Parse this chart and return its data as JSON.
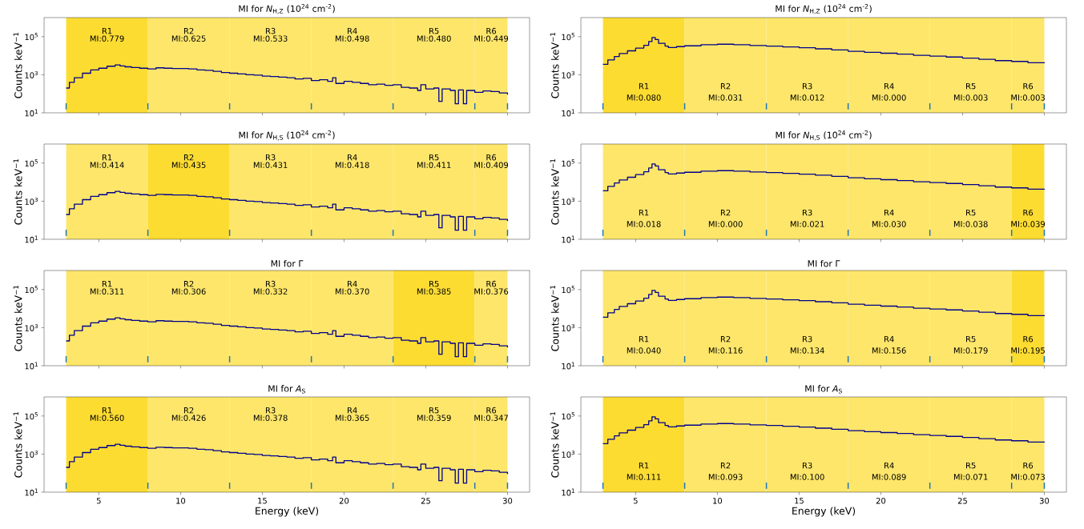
{
  "chart_data": [
    {
      "type": "step",
      "title": "MI for *N*$_{H,Z}$ (10$^{24}$ cm$^{-2}$)",
      "ylabel": "Counts keV$^{−1}$",
      "log": "y",
      "tick_labels": "y",
      "xlim": [
        1.65,
        31.35
      ],
      "ylim": [
        10,
        1000000
      ],
      "xticks": [
        5,
        10,
        15,
        20,
        25,
        30
      ],
      "yticks": [
        {
          "value": 10,
          "label": "10$^{1}$"
        },
        {
          "value": 1000,
          "label": "10$^{3}$"
        },
        {
          "value": 100000,
          "label": "10$^{5}$"
        }
      ],
      "series": [
        {
          "color": "#00008b",
          "x": [
            3.0,
            3.2,
            3.5,
            4,
            4.5,
            5,
            5.5,
            6,
            6.3,
            6.6,
            7,
            7.5,
            8,
            8.5,
            9,
            9.5,
            10,
            10.5,
            11,
            11.5,
            12,
            12.5,
            13,
            13.5,
            14,
            14.5,
            15,
            15.5,
            16,
            16.5,
            17,
            17.5,
            18,
            18.5,
            19,
            19.3,
            19.5,
            20,
            20.5,
            21,
            21.5,
            22,
            22.5,
            23,
            23.5,
            24,
            24.5,
            24.7,
            25,
            25.5,
            25.8,
            26,
            26.5,
            26.8,
            27,
            27.3,
            27.5,
            28,
            28.5,
            29,
            29.5,
            30
          ],
          "values": [
            200,
            400,
            700,
            1200,
            1800,
            2200,
            2800,
            3300,
            2900,
            2600,
            2400,
            2200,
            2000,
            2300,
            2200,
            2100,
            2100,
            2000,
            1800,
            1700,
            1500,
            1300,
            1200,
            1100,
            1000,
            950,
            850,
            800,
            750,
            700,
            600,
            650,
            500,
            550,
            450,
            700,
            350,
            450,
            400,
            350,
            300,
            320,
            280,
            300,
            220,
            200,
            150,
            300,
            180,
            200,
            40,
            180,
            150,
            30,
            160,
            30,
            150,
            120,
            140,
            130,
            110,
            90
          ]
        },
        {
          "type": "bar",
          "color": "#1f77b4",
          "x": [
            3,
            8,
            13,
            18,
            23,
            28,
            30
          ],
          "base": [
            15,
            15,
            15,
            15,
            15,
            15,
            15
          ],
          "values": [
            17,
            17,
            17,
            17,
            17,
            17,
            17
          ]
        }
      ],
      "bands": [
        {
          "axis": "x",
          "from": 3,
          "to": 8,
          "label": "R1",
          "color": "#fddc32"
        },
        {
          "axis": "x",
          "from": 8,
          "to": 13,
          "label": "R2",
          "color": "#fde66a"
        },
        {
          "axis": "x",
          "from": 13,
          "to": 18,
          "label": "R3",
          "color": "#fde66a"
        },
        {
          "axis": "x",
          "from": 18,
          "to": 23,
          "label": "R4",
          "color": "#fde66a"
        },
        {
          "axis": "x",
          "from": 23,
          "to": 28,
          "label": "R5",
          "color": "#fde66a"
        },
        {
          "axis": "x",
          "from": 28,
          "to": 30,
          "label": "R6",
          "color": "#fde66a"
        }
      ],
      "annotations": [
        "MI:0.779",
        "MI:0.625",
        "MI:0.533",
        "MI:0.498",
        "MI:0.480",
        "MI:0.449"
      ]
    },
    {
      "type": "step",
      "title": "MI for *N*$_{H,Z}$ (10$^{24}$ cm$^{-2}$)",
      "ylabel": "Counts keV$^{−1}$",
      "log": "y",
      "tick_labels": "y",
      "xlim": [
        1.65,
        31.35
      ],
      "ylim": [
        10,
        1000000
      ],
      "xticks": [
        5,
        10,
        15,
        20,
        25,
        30
      ],
      "yticks": [
        {
          "value": 10,
          "label": "10$^{1}$"
        },
        {
          "value": 1000,
          "label": "10$^{3}$"
        },
        {
          "value": 100000,
          "label": "10$^{5}$"
        }
      ],
      "series": [
        {
          "color": "#00008b",
          "x": [
            3,
            3.3,
            3.7,
            4,
            4.5,
            5,
            5.5,
            5.8,
            6.0,
            6.2,
            6.4,
            6.6,
            6.8,
            7,
            7.5,
            8,
            9,
            10,
            11,
            12,
            13,
            14,
            15,
            16,
            17,
            18,
            19,
            20,
            21,
            22,
            23,
            24,
            25,
            26,
            27,
            28,
            29,
            30
          ],
          "values": [
            3500,
            6000,
            9000,
            13000,
            18000,
            25000,
            35000,
            55000,
            90000,
            70000,
            45000,
            45000,
            32000,
            27000,
            30000,
            33000,
            38000,
            40000,
            38000,
            34000,
            32000,
            29000,
            26000,
            23000,
            20000,
            17000,
            15000,
            13500,
            12000,
            10500,
            9500,
            8500,
            7500,
            6500,
            5500,
            5000,
            4300,
            4000
          ]
        },
        {
          "type": "bar",
          "color": "#1f77b4",
          "x": [
            3,
            8,
            13,
            18,
            23,
            28,
            30
          ],
          "base": [
            15,
            15,
            15,
            15,
            15,
            15,
            15
          ],
          "values": [
            17,
            17,
            17,
            17,
            17,
            17,
            17
          ]
        }
      ],
      "bands": [
        {
          "axis": "x",
          "from": 3,
          "to": 8,
          "label": "R1",
          "color": "#fddc32"
        },
        {
          "axis": "x",
          "from": 8,
          "to": 13,
          "label": "R2",
          "color": "#fde66a"
        },
        {
          "axis": "x",
          "from": 13,
          "to": 18,
          "label": "R3",
          "color": "#fde66a"
        },
        {
          "axis": "x",
          "from": 18,
          "to": 23,
          "label": "R4",
          "color": "#fde66a"
        },
        {
          "axis": "x",
          "from": 23,
          "to": 28,
          "label": "R5",
          "color": "#fde66a"
        },
        {
          "axis": "x",
          "from": 28,
          "to": 30,
          "label": "R6",
          "color": "#fde66a"
        }
      ],
      "annotations": [
        "MI:0.080",
        "MI:0.031",
        "MI:0.012",
        "MI:0.000",
        "MI:0.003",
        "MI:0.003"
      ]
    },
    {
      "type": "step",
      "title": "MI for *N*$_{H,S}$ (10$^{24}$ cm$^{-2}$)",
      "ylabel": "Counts keV$^{−1}$",
      "log": "y",
      "tick_labels": "y",
      "xlim": [
        1.65,
        31.35
      ],
      "ylim": [
        10,
        1000000
      ],
      "xticks": [
        5,
        10,
        15,
        20,
        25,
        30
      ],
      "yticks": [
        {
          "value": 10,
          "label": "10$^{1}$"
        },
        {
          "value": 1000,
          "label": "10$^{3}$"
        },
        {
          "value": 100000,
          "label": "10$^{5}$"
        }
      ],
      "series": [
        {
          "color": "#00008b",
          "x": [
            3.0,
            3.2,
            3.5,
            4,
            4.5,
            5,
            5.5,
            6,
            6.3,
            6.6,
            7,
            7.5,
            8,
            8.5,
            9,
            9.5,
            10,
            10.5,
            11,
            11.5,
            12,
            12.5,
            13,
            13.5,
            14,
            14.5,
            15,
            15.5,
            16,
            16.5,
            17,
            17.5,
            18,
            18.5,
            19,
            19.3,
            19.5,
            20,
            20.5,
            21,
            21.5,
            22,
            22.5,
            23,
            23.5,
            24,
            24.5,
            24.7,
            25,
            25.5,
            25.8,
            26,
            26.5,
            26.8,
            27,
            27.3,
            27.5,
            28,
            28.5,
            29,
            29.5,
            30
          ],
          "values": [
            200,
            400,
            700,
            1200,
            1800,
            2200,
            2800,
            3300,
            2900,
            2600,
            2400,
            2200,
            2000,
            2300,
            2200,
            2100,
            2100,
            2000,
            1800,
            1700,
            1500,
            1300,
            1200,
            1100,
            1000,
            950,
            850,
            800,
            750,
            700,
            600,
            650,
            500,
            550,
            450,
            700,
            350,
            450,
            400,
            350,
            300,
            320,
            280,
            300,
            220,
            200,
            150,
            300,
            180,
            200,
            40,
            180,
            150,
            30,
            160,
            30,
            150,
            120,
            140,
            130,
            110,
            90
          ]
        },
        {
          "type": "bar",
          "color": "#1f77b4",
          "x": [
            3,
            8,
            13,
            18,
            23,
            28,
            30
          ],
          "base": [
            15,
            15,
            15,
            15,
            15,
            15,
            15
          ],
          "values": [
            17,
            17,
            17,
            17,
            17,
            17,
            17
          ]
        }
      ],
      "bands": [
        {
          "axis": "x",
          "from": 3,
          "to": 8,
          "label": "R1",
          "color": "#fde66a"
        },
        {
          "axis": "x",
          "from": 8,
          "to": 13,
          "label": "R2",
          "color": "#fddc32"
        },
        {
          "axis": "x",
          "from": 13,
          "to": 18,
          "label": "R3",
          "color": "#fde66a"
        },
        {
          "axis": "x",
          "from": 18,
          "to": 23,
          "label": "R4",
          "color": "#fde66a"
        },
        {
          "axis": "x",
          "from": 23,
          "to": 28,
          "label": "R5",
          "color": "#fde66a"
        },
        {
          "axis": "x",
          "from": 28,
          "to": 30,
          "label": "R6",
          "color": "#fde66a"
        }
      ],
      "annotations": [
        "MI:0.414",
        "MI:0.435",
        "MI:0.431",
        "MI:0.418",
        "MI:0.411",
        "MI:0.409"
      ]
    },
    {
      "type": "step",
      "title": "MI for *N*$_{H,S}$ (10$^{24}$ cm$^{-2}$)",
      "ylabel": "Counts keV$^{−1}$",
      "log": "y",
      "tick_labels": "y",
      "xlim": [
        1.65,
        31.35
      ],
      "ylim": [
        10,
        1000000
      ],
      "xticks": [
        5,
        10,
        15,
        20,
        25,
        30
      ],
      "yticks": [
        {
          "value": 10,
          "label": "10$^{1}$"
        },
        {
          "value": 1000,
          "label": "10$^{3}$"
        },
        {
          "value": 100000,
          "label": "10$^{5}$"
        }
      ],
      "series": [
        {
          "color": "#00008b",
          "x": [
            3,
            3.3,
            3.7,
            4,
            4.5,
            5,
            5.5,
            5.8,
            6.0,
            6.2,
            6.4,
            6.6,
            6.8,
            7,
            7.5,
            8,
            9,
            10,
            11,
            12,
            13,
            14,
            15,
            16,
            17,
            18,
            19,
            20,
            21,
            22,
            23,
            24,
            25,
            26,
            27,
            28,
            29,
            30
          ],
          "values": [
            3500,
            6000,
            9000,
            13000,
            18000,
            25000,
            35000,
            55000,
            90000,
            70000,
            45000,
            45000,
            32000,
            27000,
            30000,
            33000,
            38000,
            40000,
            38000,
            34000,
            32000,
            29000,
            26000,
            23000,
            20000,
            17000,
            15000,
            13500,
            12000,
            10500,
            9500,
            8500,
            7500,
            6500,
            5500,
            5000,
            4300,
            4000
          ]
        },
        {
          "type": "bar",
          "color": "#1f77b4",
          "x": [
            3,
            8,
            13,
            18,
            23,
            28,
            30
          ],
          "base": [
            15,
            15,
            15,
            15,
            15,
            15,
            15
          ],
          "values": [
            17,
            17,
            17,
            17,
            17,
            17,
            17
          ]
        }
      ],
      "bands": [
        {
          "axis": "x",
          "from": 3,
          "to": 8,
          "label": "R1",
          "color": "#fde66a"
        },
        {
          "axis": "x",
          "from": 8,
          "to": 13,
          "label": "R2",
          "color": "#fde66a"
        },
        {
          "axis": "x",
          "from": 13,
          "to": 18,
          "label": "R3",
          "color": "#fde66a"
        },
        {
          "axis": "x",
          "from": 18,
          "to": 23,
          "label": "R4",
          "color": "#fde66a"
        },
        {
          "axis": "x",
          "from": 23,
          "to": 28,
          "label": "R5",
          "color": "#fde66a"
        },
        {
          "axis": "x",
          "from": 28,
          "to": 30,
          "label": "R6",
          "color": "#fddc32"
        }
      ],
      "annotations": [
        "MI:0.018",
        "MI:0.000",
        "MI:0.021",
        "MI:0.030",
        "MI:0.038",
        "MI:0.039"
      ]
    },
    {
      "type": "step",
      "title": "MI for Γ",
      "ylabel": "Counts keV$^{−1}$",
      "log": "y",
      "tick_labels": "y",
      "xlim": [
        1.65,
        31.35
      ],
      "ylim": [
        10,
        1000000
      ],
      "xticks": [
        5,
        10,
        15,
        20,
        25,
        30
      ],
      "yticks": [
        {
          "value": 10,
          "label": "10$^{1}$"
        },
        {
          "value": 1000,
          "label": "10$^{3}$"
        },
        {
          "value": 100000,
          "label": "10$^{5}$"
        }
      ],
      "series": [
        {
          "color": "#00008b",
          "x": [
            3.0,
            3.2,
            3.5,
            4,
            4.5,
            5,
            5.5,
            6,
            6.3,
            6.6,
            7,
            7.5,
            8,
            8.5,
            9,
            9.5,
            10,
            10.5,
            11,
            11.5,
            12,
            12.5,
            13,
            13.5,
            14,
            14.5,
            15,
            15.5,
            16,
            16.5,
            17,
            17.5,
            18,
            18.5,
            19,
            19.3,
            19.5,
            20,
            20.5,
            21,
            21.5,
            22,
            22.5,
            23,
            23.5,
            24,
            24.5,
            24.7,
            25,
            25.5,
            25.8,
            26,
            26.5,
            26.8,
            27,
            27.3,
            27.5,
            28,
            28.5,
            29,
            29.5,
            30
          ],
          "values": [
            200,
            400,
            700,
            1200,
            1800,
            2200,
            2800,
            3300,
            2900,
            2600,
            2400,
            2200,
            2000,
            2300,
            2200,
            2100,
            2100,
            2000,
            1800,
            1700,
            1500,
            1300,
            1200,
            1100,
            1000,
            950,
            850,
            800,
            750,
            700,
            600,
            650,
            500,
            550,
            450,
            700,
            350,
            450,
            400,
            350,
            300,
            320,
            280,
            300,
            220,
            200,
            150,
            300,
            180,
            200,
            40,
            180,
            150,
            30,
            160,
            30,
            150,
            120,
            140,
            130,
            110,
            90
          ]
        },
        {
          "type": "bar",
          "color": "#1f77b4",
          "x": [
            3,
            8,
            13,
            18,
            23,
            28,
            30
          ],
          "base": [
            15,
            15,
            15,
            15,
            15,
            15,
            15
          ],
          "values": [
            17,
            17,
            17,
            17,
            17,
            17,
            17
          ]
        }
      ],
      "bands": [
        {
          "axis": "x",
          "from": 3,
          "to": 8,
          "label": "R1",
          "color": "#fde66a"
        },
        {
          "axis": "x",
          "from": 8,
          "to": 13,
          "label": "R2",
          "color": "#fde66a"
        },
        {
          "axis": "x",
          "from": 13,
          "to": 18,
          "label": "R3",
          "color": "#fde66a"
        },
        {
          "axis": "x",
          "from": 18,
          "to": 23,
          "label": "R4",
          "color": "#fde66a"
        },
        {
          "axis": "x",
          "from": 23,
          "to": 28,
          "label": "R5",
          "color": "#fddc32"
        },
        {
          "axis": "x",
          "from": 28,
          "to": 30,
          "label": "R6",
          "color": "#fde66a"
        }
      ],
      "annotations": [
        "MI:0.311",
        "MI:0.306",
        "MI:0.332",
        "MI:0.370",
        "MI:0.385",
        "MI:0.376"
      ]
    },
    {
      "type": "step",
      "title": "MI for Γ",
      "ylabel": "Counts keV$^{−1}$",
      "log": "y",
      "tick_labels": "y",
      "xlim": [
        1.65,
        31.35
      ],
      "ylim": [
        10,
        1000000
      ],
      "xticks": [
        5,
        10,
        15,
        20,
        25,
        30
      ],
      "yticks": [
        {
          "value": 10,
          "label": "10$^{1}$"
        },
        {
          "value": 1000,
          "label": "10$^{3}$"
        },
        {
          "value": 100000,
          "label": "10$^{5}$"
        }
      ],
      "series": [
        {
          "color": "#00008b",
          "x": [
            3,
            3.3,
            3.7,
            4,
            4.5,
            5,
            5.5,
            5.8,
            6.0,
            6.2,
            6.4,
            6.6,
            6.8,
            7,
            7.5,
            8,
            9,
            10,
            11,
            12,
            13,
            14,
            15,
            16,
            17,
            18,
            19,
            20,
            21,
            22,
            23,
            24,
            25,
            26,
            27,
            28,
            29,
            30
          ],
          "values": [
            3500,
            6000,
            9000,
            13000,
            18000,
            25000,
            35000,
            55000,
            90000,
            70000,
            45000,
            45000,
            32000,
            27000,
            30000,
            33000,
            38000,
            40000,
            38000,
            34000,
            32000,
            29000,
            26000,
            23000,
            20000,
            17000,
            15000,
            13500,
            12000,
            10500,
            9500,
            8500,
            7500,
            6500,
            5500,
            5000,
            4300,
            4000
          ]
        },
        {
          "type": "bar",
          "color": "#1f77b4",
          "x": [
            3,
            8,
            13,
            18,
            23,
            28,
            30
          ],
          "base": [
            15,
            15,
            15,
            15,
            15,
            15,
            15
          ],
          "values": [
            17,
            17,
            17,
            17,
            17,
            17,
            17
          ]
        }
      ],
      "bands": [
        {
          "axis": "x",
          "from": 3,
          "to": 8,
          "label": "R1",
          "color": "#fde66a"
        },
        {
          "axis": "x",
          "from": 8,
          "to": 13,
          "label": "R2",
          "color": "#fde66a"
        },
        {
          "axis": "x",
          "from": 13,
          "to": 18,
          "label": "R3",
          "color": "#fde66a"
        },
        {
          "axis": "x",
          "from": 18,
          "to": 23,
          "label": "R4",
          "color": "#fde66a"
        },
        {
          "axis": "x",
          "from": 23,
          "to": 28,
          "label": "R5",
          "color": "#fde66a"
        },
        {
          "axis": "x",
          "from": 28,
          "to": 30,
          "label": "R6",
          "color": "#fddc32"
        }
      ],
      "annotations": [
        "MI:0.040",
        "MI:0.116",
        "MI:0.134",
        "MI:0.156",
        "MI:0.179",
        "MI:0.195"
      ]
    },
    {
      "type": "step",
      "title": "MI for *A*$_{S}$",
      "xlabel": "Energy (keV)",
      "ylabel": "Counts keV$^{−1}$",
      "log": "y",
      "xlim": [
        1.65,
        31.35
      ],
      "ylim": [
        10,
        1000000
      ],
      "xticks": [
        5,
        10,
        15,
        20,
        25,
        30
      ],
      "yticks": [
        {
          "value": 10,
          "label": "10$^{1}$"
        },
        {
          "value": 1000,
          "label": "10$^{3}$"
        },
        {
          "value": 100000,
          "label": "10$^{5}$"
        }
      ],
      "series": [
        {
          "color": "#00008b",
          "x": [
            3.0,
            3.2,
            3.5,
            4,
            4.5,
            5,
            5.5,
            6,
            6.3,
            6.6,
            7,
            7.5,
            8,
            8.5,
            9,
            9.5,
            10,
            10.5,
            11,
            11.5,
            12,
            12.5,
            13,
            13.5,
            14,
            14.5,
            15,
            15.5,
            16,
            16.5,
            17,
            17.5,
            18,
            18.5,
            19,
            19.3,
            19.5,
            20,
            20.5,
            21,
            21.5,
            22,
            22.5,
            23,
            23.5,
            24,
            24.5,
            24.7,
            25,
            25.5,
            25.8,
            26,
            26.5,
            26.8,
            27,
            27.3,
            27.5,
            28,
            28.5,
            29,
            29.5,
            30
          ],
          "values": [
            200,
            400,
            700,
            1200,
            1800,
            2200,
            2800,
            3300,
            2900,
            2600,
            2400,
            2200,
            2000,
            2300,
            2200,
            2100,
            2100,
            2000,
            1800,
            1700,
            1500,
            1300,
            1200,
            1100,
            1000,
            950,
            850,
            800,
            750,
            700,
            600,
            650,
            500,
            550,
            450,
            700,
            350,
            450,
            400,
            350,
            300,
            320,
            280,
            300,
            220,
            200,
            150,
            300,
            180,
            200,
            40,
            180,
            150,
            30,
            160,
            30,
            150,
            120,
            140,
            130,
            110,
            90
          ]
        },
        {
          "type": "bar",
          "color": "#1f77b4",
          "x": [
            3,
            8,
            13,
            18,
            23,
            28,
            30
          ],
          "base": [
            15,
            15,
            15,
            15,
            15,
            15,
            15
          ],
          "values": [
            17,
            17,
            17,
            17,
            17,
            17,
            17
          ]
        }
      ],
      "bands": [
        {
          "axis": "x",
          "from": 3,
          "to": 8,
          "label": "R1",
          "color": "#fddc32"
        },
        {
          "axis": "x",
          "from": 8,
          "to": 13,
          "label": "R2",
          "color": "#fde66a"
        },
        {
          "axis": "x",
          "from": 13,
          "to": 18,
          "label": "R3",
          "color": "#fde66a"
        },
        {
          "axis": "x",
          "from": 18,
          "to": 23,
          "label": "R4",
          "color": "#fde66a"
        },
        {
          "axis": "x",
          "from": 23,
          "to": 28,
          "label": "R5",
          "color": "#fde66a"
        },
        {
          "axis": "x",
          "from": 28,
          "to": 30,
          "label": "R6",
          "color": "#fde66a"
        }
      ],
      "annotations": [
        "MI:0.560",
        "MI:0.426",
        "MI:0.378",
        "MI:0.365",
        "MI:0.359",
        "MI:0.347"
      ]
    },
    {
      "type": "step",
      "title": "MI for *A*$_{S}$",
      "xlabel": "Energy (keV)",
      "ylabel": "Counts keV$^{−1}$",
      "log": "y",
      "xlim": [
        1.65,
        31.35
      ],
      "ylim": [
        10,
        1000000
      ],
      "xticks": [
        5,
        10,
        15,
        20,
        25,
        30
      ],
      "yticks": [
        {
          "value": 10,
          "label": "10$^{1}$"
        },
        {
          "value": 1000,
          "label": "10$^{3}$"
        },
        {
          "value": 100000,
          "label": "10$^{5}$"
        }
      ],
      "series": [
        {
          "color": "#00008b",
          "x": [
            3,
            3.3,
            3.7,
            4,
            4.5,
            5,
            5.5,
            5.8,
            6.0,
            6.2,
            6.4,
            6.6,
            6.8,
            7,
            7.5,
            8,
            9,
            10,
            11,
            12,
            13,
            14,
            15,
            16,
            17,
            18,
            19,
            20,
            21,
            22,
            23,
            24,
            25,
            26,
            27,
            28,
            29,
            30
          ],
          "values": [
            3500,
            6000,
            9000,
            13000,
            18000,
            25000,
            35000,
            55000,
            90000,
            70000,
            45000,
            45000,
            32000,
            27000,
            30000,
            33000,
            38000,
            40000,
            38000,
            34000,
            32000,
            29000,
            26000,
            23000,
            20000,
            17000,
            15000,
            13500,
            12000,
            10500,
            9500,
            8500,
            7500,
            6500,
            5500,
            5000,
            4300,
            4000
          ]
        },
        {
          "type": "bar",
          "color": "#1f77b4",
          "x": [
            3,
            8,
            13,
            18,
            23,
            28,
            30
          ],
          "base": [
            15,
            15,
            15,
            15,
            15,
            15,
            15
          ],
          "values": [
            17,
            17,
            17,
            17,
            17,
            17,
            17
          ]
        }
      ],
      "bands": [
        {
          "axis": "x",
          "from": 3,
          "to": 8,
          "label": "R1",
          "color": "#fddc32"
        },
        {
          "axis": "x",
          "from": 8,
          "to": 13,
          "label": "R2",
          "color": "#fde66a"
        },
        {
          "axis": "x",
          "from": 13,
          "to": 18,
          "label": "R3",
          "color": "#fde66a"
        },
        {
          "axis": "x",
          "from": 18,
          "to": 23,
          "label": "R4",
          "color": "#fde66a"
        },
        {
          "axis": "x",
          "from": 23,
          "to": 28,
          "label": "R5",
          "color": "#fde66a"
        },
        {
          "axis": "x",
          "from": 28,
          "to": 30,
          "label": "R6",
          "color": "#fde66a"
        }
      ],
      "annotations": [
        "MI:0.111",
        "MI:0.093",
        "MI:0.100",
        "MI:0.089",
        "MI:0.071",
        "MI:0.073"
      ]
    }
  ]
}
